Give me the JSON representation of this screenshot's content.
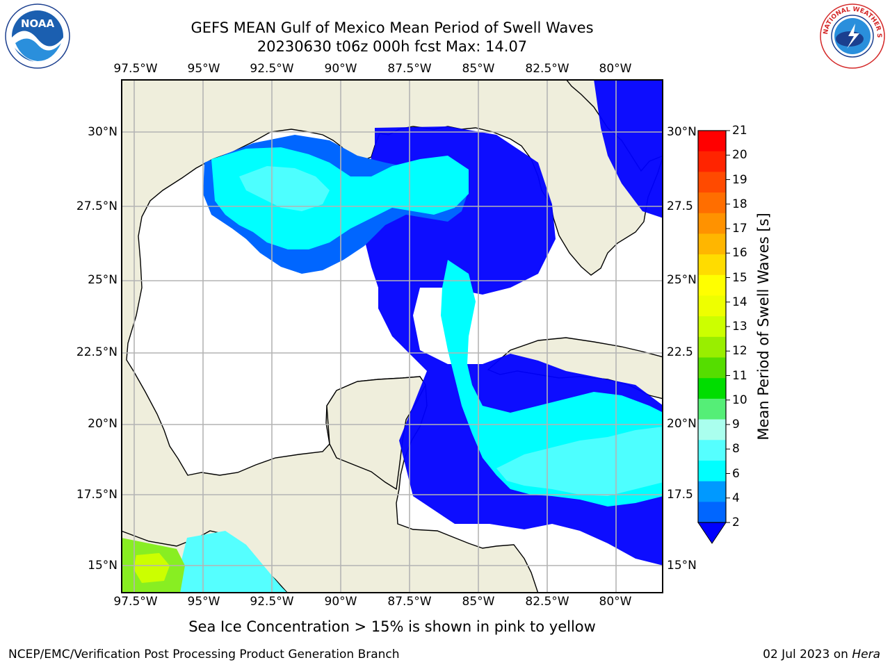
{
  "title": {
    "line1": "GEFS MEAN Gulf of Mexico Mean Period of Swell Waves",
    "line2": "20230630 t06z 000h fcst   Max: 14.07"
  },
  "map": {
    "lon_labels": [
      "97.5°W",
      "95°W",
      "92.5°W",
      "90°W",
      "87.5°W",
      "85°W",
      "82.5°W",
      "80°W"
    ],
    "lat_labels_left": [
      "30°N",
      "27.5°N",
      "25°N",
      "22.5°N",
      "20°N",
      "17.5°N",
      "15°N"
    ],
    "lat_labels_right": [
      "30°N",
      "27.5",
      "25°N",
      "22.5",
      "20°N",
      "17.5",
      "15°N"
    ],
    "colors": {
      "land": "#efeedc",
      "ocean_no_data": "#ffffff",
      "gridline": "#b4b4b4",
      "coastline": "#000000"
    }
  },
  "colorbar": {
    "label": "Mean Period of Swell Waves [s]",
    "ticks": [
      "21",
      "20",
      "19",
      "18",
      "17",
      "16",
      "15",
      "14",
      "13",
      "12",
      "11",
      "10",
      "9",
      "8",
      "6",
      "4",
      "2"
    ],
    "colors": [
      "#ff0000",
      "#ff2400",
      "#ff4a00",
      "#ff6e00",
      "#ff9200",
      "#ffb600",
      "#ffdc00",
      "#ffff00",
      "#eeff00",
      "#ccff00",
      "#99ee00",
      "#55dd00",
      "#00dd00",
      "#55ee77",
      "#aaffee",
      "#55ffff",
      "#00ffff",
      "#0099ff",
      "#0066ff"
    ],
    "extend_color": "#0000ff"
  },
  "ice_note": "Sea Ice Concentration > 15% is shown in pink to yellow",
  "footer": {
    "left": "NCEP/EMC/Verification Post Processing Product Generation Branch",
    "right_prefix": "02 Jul 2023 on ",
    "right_italic": "Hera"
  },
  "logos": {
    "noaa_text": "NOAA",
    "nws_text": "NATIONAL WEATHER SERVICE"
  }
}
